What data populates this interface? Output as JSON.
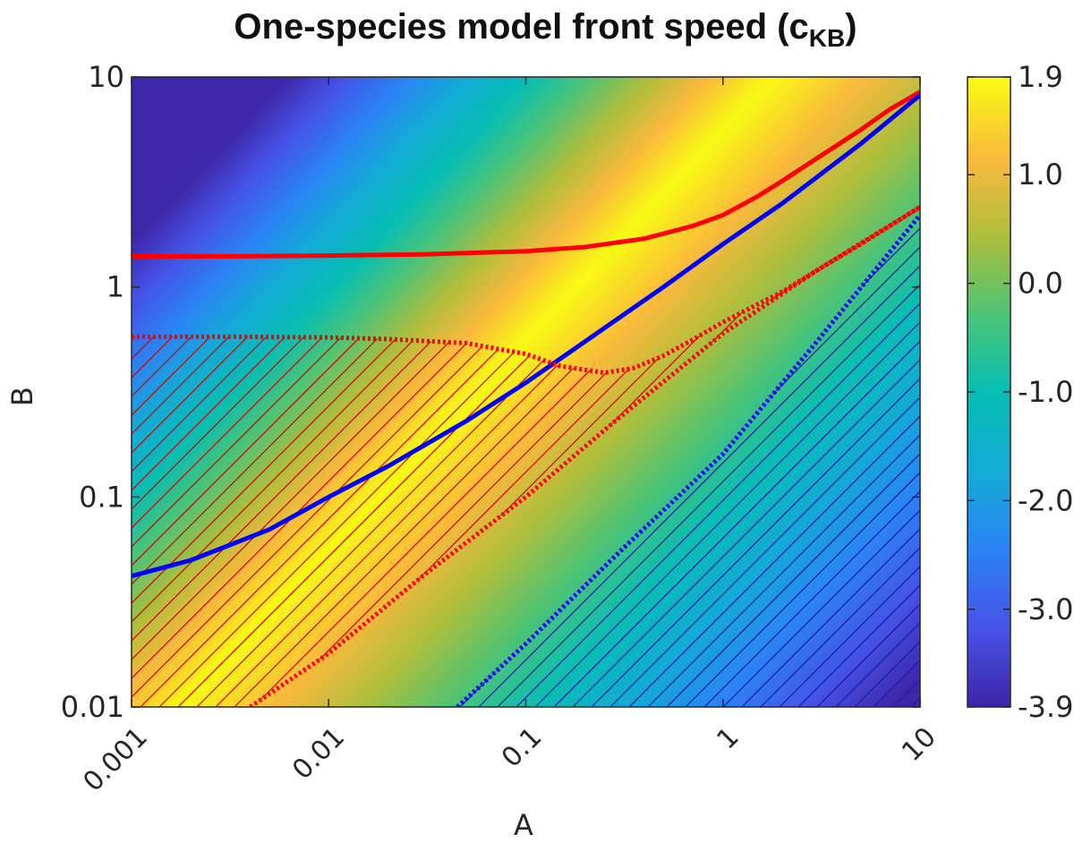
{
  "chart_data": {
    "type": "heatmap",
    "title": "One-species model front speed (c",
    "title_subscript": "KB",
    "title_suffix": ")",
    "xlabel": "A",
    "ylabel": "B",
    "x_scale": "log",
    "y_scale": "log",
    "xlim": [
      0.001,
      10
    ],
    "ylim": [
      0.01,
      10
    ],
    "x_ticks": [
      0.001,
      0.01,
      0.1,
      1,
      10
    ],
    "x_tick_labels": [
      "0.001",
      "0.01",
      "0.1",
      "1",
      "10"
    ],
    "y_ticks": [
      0.01,
      0.1,
      1,
      10
    ],
    "y_tick_labels": [
      "0.01",
      "0.1",
      "1",
      "10"
    ],
    "colormap": "parula",
    "colorbar": {
      "range": [
        -3.9,
        1.9
      ],
      "ticks": [
        1.9,
        1.0,
        0.0,
        -1.0,
        -2.0,
        -3.0,
        -3.9
      ],
      "tick_labels": [
        "1.9",
        "1.0",
        "0.0",
        "-1.0",
        "-2.0",
        "-3.0",
        "-3.9"
      ]
    },
    "field_surface": {
      "ridge_offset": -0.75,
      "ridge_value": 1.9,
      "slope_above": -2.35,
      "slope_below": -1.6,
      "min": -3.9,
      "max": 1.9
    },
    "lines": [
      {
        "color": "#ff0000",
        "style": "solid",
        "x": [
          0.001,
          0.003,
          0.01,
          0.03,
          0.1,
          0.2,
          0.4,
          0.7,
          1,
          1.5,
          2,
          3,
          5,
          7,
          10
        ],
        "y": [
          1.4,
          1.4,
          1.41,
          1.43,
          1.48,
          1.55,
          1.7,
          1.95,
          2.2,
          2.7,
          3.2,
          4.1,
          5.6,
          7.0,
          8.5
        ]
      },
      {
        "color": "#0000ff",
        "style": "solid",
        "x": [
          0.001,
          0.002,
          0.005,
          0.01,
          0.02,
          0.05,
          0.1,
          0.2,
          0.5,
          1,
          2,
          5,
          10
        ],
        "y": [
          0.042,
          0.05,
          0.07,
          0.1,
          0.14,
          0.23,
          0.35,
          0.55,
          1.0,
          1.6,
          2.5,
          4.8,
          8.2
        ]
      },
      {
        "color": "#ff0000",
        "style": "dotted",
        "x": [
          0.001,
          0.003,
          0.01,
          0.02,
          0.05,
          0.1,
          0.15,
          0.25,
          0.35,
          0.5,
          0.7,
          1,
          2,
          3,
          5,
          10
        ],
        "y": [
          0.58,
          0.58,
          0.575,
          0.565,
          0.54,
          0.48,
          0.42,
          0.39,
          0.41,
          0.47,
          0.56,
          0.68,
          0.95,
          1.2,
          1.6,
          2.4
        ]
      },
      {
        "color": "#ff0000",
        "style": "dotted",
        "x": [
          0.004,
          0.01,
          0.03,
          0.1,
          0.3,
          1,
          3,
          10
        ],
        "y": [
          0.01,
          0.018,
          0.042,
          0.1,
          0.24,
          0.6,
          1.2,
          2.4
        ]
      },
      {
        "color": "#0000ff",
        "style": "dotted",
        "x": [
          0.045,
          0.1,
          0.3,
          1,
          3,
          10
        ],
        "y": [
          0.01,
          0.02,
          0.055,
          0.16,
          0.55,
          2.2
        ]
      }
    ],
    "hatched_regions": [
      {
        "color": "#d40000",
        "angle": "45deg",
        "x_boundary": [
          0.001,
          0.003,
          0.01,
          0.02,
          0.05,
          0.1,
          0.15,
          0.25,
          0.35,
          0.5,
          0.7,
          1,
          2,
          3,
          5,
          10,
          3,
          1,
          0.3,
          0.1,
          0.03,
          0.01,
          0.004,
          0.001
        ],
        "y_boundary": [
          0.58,
          0.58,
          0.575,
          0.565,
          0.54,
          0.48,
          0.42,
          0.39,
          0.41,
          0.47,
          0.56,
          0.68,
          0.95,
          1.2,
          1.6,
          2.4,
          1.2,
          0.6,
          0.24,
          0.1,
          0.042,
          0.018,
          0.01,
          0.01
        ]
      },
      {
        "color": "#1a1aa0",
        "angle": "45deg",
        "x_boundary": [
          0.045,
          0.1,
          0.3,
          1,
          3,
          10,
          10
        ],
        "y_boundary": [
          0.01,
          0.02,
          0.055,
          0.16,
          0.55,
          2.2,
          0.01
        ]
      }
    ]
  }
}
